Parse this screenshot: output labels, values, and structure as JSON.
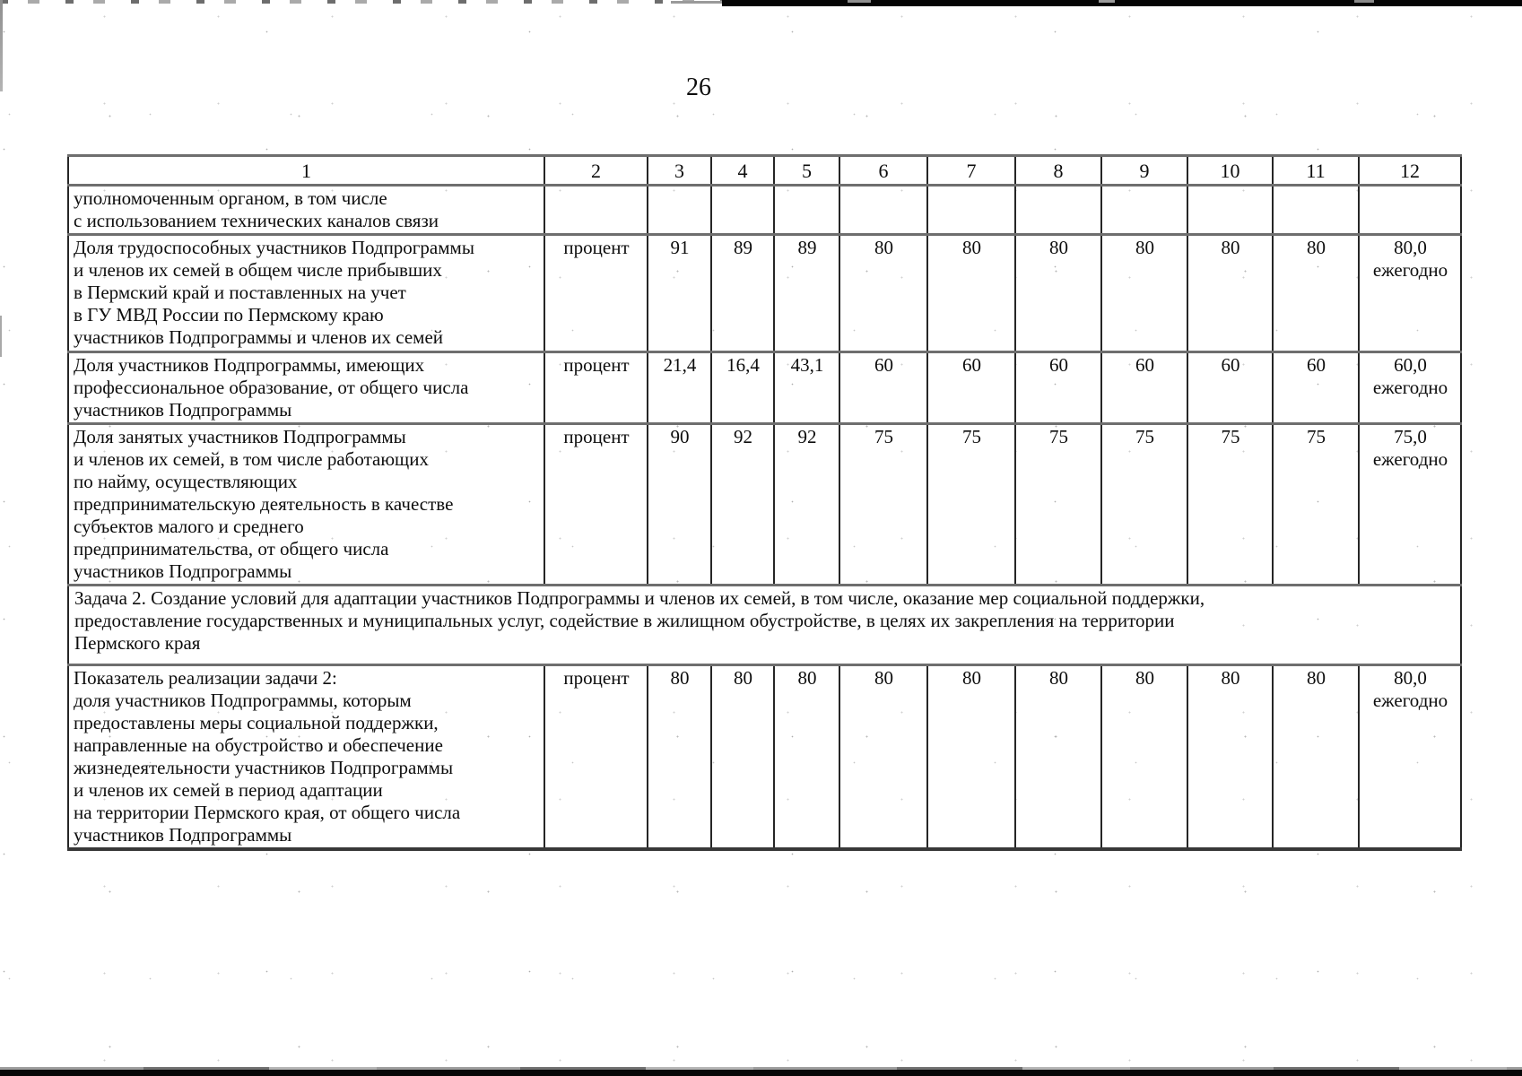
{
  "page": {
    "number": "26"
  },
  "table": {
    "header": [
      "1",
      "2",
      "3",
      "4",
      "5",
      "6",
      "7",
      "8",
      "9",
      "10",
      "11",
      "12"
    ],
    "rows": [
      {
        "name": "row-authorized-body-continuation",
        "cells": [
          "уполномоченным органом, в том числе\nс использованием технических каналов связи",
          "",
          "",
          "",
          "",
          "",
          "",
          "",
          "",
          "",
          "",
          ""
        ]
      },
      {
        "name": "row-share-able-bodied-participants",
        "cells": [
          "Доля трудоспособных участников Подпрограммы\nи членов их семей в общем числе прибывших\nв Пермский край и поставленных на учет\nв ГУ МВД России по Пермскому краю\nучастников Подпрограммы и членов их семей",
          "процент",
          "91",
          "89",
          "89",
          "80",
          "80",
          "80",
          "80",
          "80",
          "80",
          "80,0\nежегодно"
        ]
      },
      {
        "name": "row-share-professional-education",
        "cells": [
          "Доля участников Подпрограммы, имеющих\nпрофессиональное образование, от общего числа\nучастников Подпрограммы",
          "процент",
          "21,4",
          "16,4",
          "43,1",
          "60",
          "60",
          "60",
          "60",
          "60",
          "60",
          "60,0\nежегодно"
        ]
      },
      {
        "name": "row-share-employed-participants",
        "cells": [
          "Доля занятых участников Подпрограммы\nи членов их семей, в том числе работающих\nпо найму, осуществляющих\nпредпринимательскую деятельность в качестве\nсубъектов малого и среднего\nпредпринимательства, от общего числа\nучастников Подпрограммы",
          "процент",
          "90",
          "92",
          "92",
          "75",
          "75",
          "75",
          "75",
          "75",
          "75",
          "75,0\nежегодно"
        ]
      },
      {
        "name": "row-task-2",
        "span_all": true,
        "cells": [
          "Задача 2. Создание условий для адаптации участников Подпрограммы и членов их семей, в том числе, оказание мер социальной поддержки,\nпредоставление государственных и муниципальных услуг, содействие в жилищном обустройстве, в целях их закрепления на территории\nПермского края"
        ]
      },
      {
        "name": "row-task-2-indicator",
        "cells": [
          "Показатель реализации задачи 2:\nдоля участников Подпрограммы, которым\nпредоставлены меры социальной поддержки,\nнаправленные на обустройство и обеспечение\nжизнедеятельности участников Подпрограммы\nи членов их семей в период адаптации\nна территории Пермского края, от общего числа\nучастников Подпрограммы",
          "процент",
          "80",
          "80",
          "80",
          "80",
          "80",
          "80",
          "80",
          "80",
          "80",
          "80,0\nежегодно"
        ]
      }
    ]
  }
}
